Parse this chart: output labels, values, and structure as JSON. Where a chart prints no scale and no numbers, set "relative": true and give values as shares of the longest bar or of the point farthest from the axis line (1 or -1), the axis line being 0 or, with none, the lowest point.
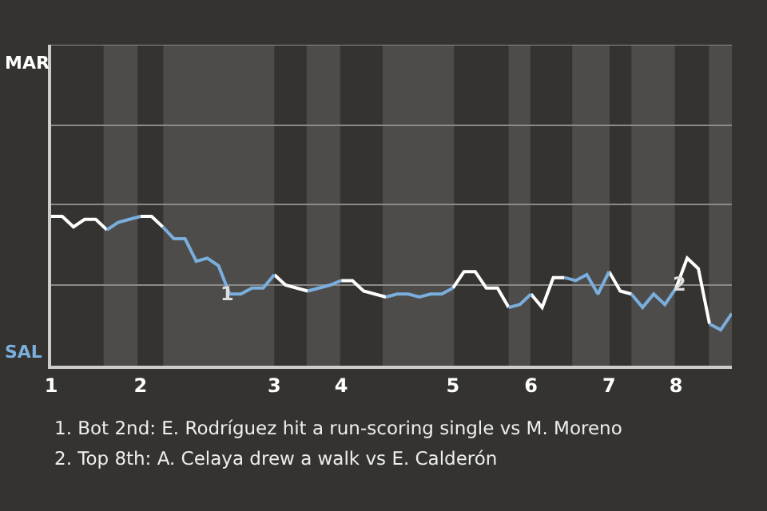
{
  "chart_data": {
    "type": "line",
    "relative": true,
    "categories": [
      "1",
      null,
      null,
      null,
      null,
      null,
      null,
      null,
      "2",
      null,
      null,
      null,
      null,
      null,
      null,
      null,
      null,
      null,
      null,
      null,
      "3",
      null,
      null,
      null,
      null,
      null,
      "4",
      null,
      null,
      null,
      null,
      null,
      null,
      null,
      null,
      null,
      "5",
      null,
      null,
      null,
      null,
      null,
      null,
      "6",
      null,
      null,
      null,
      null,
      null,
      null,
      "7",
      null,
      null,
      null,
      null,
      null,
      "8",
      null,
      null,
      null,
      null,
      null
    ],
    "series": [
      {
        "color": "#ffffff",
        "values": [
          1.0,
          1.0,
          0.93,
          0.98,
          0.98,
          0.91,
          null,
          null,
          1.0,
          1.0,
          0.93,
          null,
          null,
          null,
          null,
          null,
          null,
          null,
          null,
          null,
          0.61,
          0.54,
          0.52,
          0.5,
          null,
          null,
          0.57,
          0.57,
          0.5,
          0.48,
          0.46,
          null,
          null,
          null,
          null,
          null,
          0.52,
          0.63,
          0.63,
          0.52,
          0.52,
          0.39,
          null,
          0.48,
          0.39,
          0.59,
          0.59,
          null,
          null,
          null,
          0.63,
          0.5,
          0.48,
          null,
          null,
          null,
          0.52,
          0.72,
          0.65,
          0.28,
          null,
          null
        ]
      },
      {
        "color": "#7aaedd",
        "values": [
          null,
          null,
          null,
          null,
          null,
          0.91,
          0.96,
          0.98,
          1.0,
          null,
          0.93,
          0.85,
          0.85,
          0.7,
          0.72,
          0.67,
          0.48,
          0.48,
          0.52,
          0.52,
          0.61,
          null,
          null,
          0.5,
          0.52,
          0.54,
          0.57,
          null,
          null,
          null,
          0.46,
          0.48,
          0.48,
          0.46,
          0.48,
          0.48,
          0.52,
          null,
          null,
          null,
          null,
          0.39,
          0.41,
          0.48,
          null,
          null,
          0.59,
          0.57,
          0.61,
          0.48,
          0.63,
          null,
          0.48,
          0.39,
          0.48,
          0.41,
          0.52,
          null,
          null,
          0.28,
          0.24,
          0.35
        ]
      }
    ],
    "ref_lines": [
      {
        "axis": "y",
        "value": 0.54,
        "color": "#8a8a88"
      },
      {
        "axis": "y",
        "value": 1.08,
        "color": "#8a8a88"
      },
      {
        "axis": "y",
        "value": 1.61,
        "color": "#8a8a88"
      },
      {
        "axis": "y",
        "value": 2.15,
        "color": "#8a8a88"
      }
    ],
    "marker": "none",
    "line_style": "solid",
    "annotations": [
      "MAR",
      "SAL",
      "1",
      "2",
      "1. Bot 2nd: E. Rodríguez hit a run-scoring single vs M. Moreno",
      "2. Top 8th: A. Celaya drew a walk vs E. Calderón"
    ]
  }
}
